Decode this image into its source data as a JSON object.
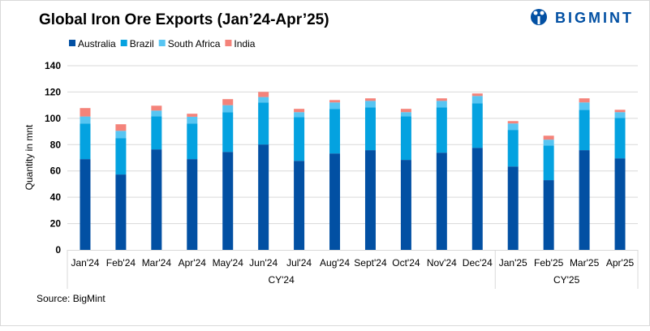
{
  "chart_data": {
    "type": "bar",
    "stacked": true,
    "title": "Global Iron Ore Exports (Jan’24-Apr’25)",
    "ylabel": "Quantity in mnt",
    "xlabel": "",
    "ylim": [
      0,
      140
    ],
    "yticks": [
      0,
      20,
      40,
      60,
      80,
      100,
      120,
      140
    ],
    "grid": "horizontal",
    "legend_position": "top-left",
    "categories": [
      "Jan'24",
      "Feb'24",
      "Mar'24",
      "Apr'24",
      "May'24",
      "Jun'24",
      "Jul'24",
      "Aug'24",
      "Sept'24",
      "Oct'24",
      "Nov'24",
      "Dec'24",
      "Jan'25",
      "Feb'25",
      "Mar'25",
      "Apr'25"
    ],
    "groups": [
      {
        "label": "CY'24",
        "count": 12
      },
      {
        "label": "CY'25",
        "count": 4
      }
    ],
    "series": [
      {
        "name": "Australia",
        "color": "#0250a3",
        "values": [
          69.0,
          57.3,
          76.4,
          69.0,
          74.5,
          80.1,
          67.7,
          73.3,
          75.8,
          68.4,
          73.9,
          77.6,
          63.4,
          53.0,
          75.8,
          69.6
        ]
      },
      {
        "name": "Brazil",
        "color": "#04a2e0",
        "values": [
          27.1,
          27.7,
          25.2,
          27.1,
          30.2,
          32.0,
          33.3,
          33.9,
          32.6,
          33.2,
          34.5,
          33.9,
          27.8,
          26.4,
          30.7,
          30.8
        ]
      },
      {
        "name": "South Africa",
        "color": "#57c5f2",
        "values": [
          5.3,
          5.5,
          4.3,
          5.1,
          5.3,
          4.1,
          3.7,
          4.9,
          4.9,
          3.1,
          4.9,
          5.5,
          4.9,
          4.4,
          5.6,
          4.3
        ]
      },
      {
        "name": "India",
        "color": "#f4837a",
        "values": [
          6.4,
          5.0,
          3.7,
          2.3,
          4.6,
          3.9,
          2.5,
          1.8,
          1.9,
          2.5,
          1.9,
          1.9,
          1.8,
          3.0,
          3.1,
          1.8
        ]
      }
    ],
    "source": "Source: BigMint"
  },
  "logo": {
    "text": "BIGMINT",
    "color": "#0250a3"
  }
}
